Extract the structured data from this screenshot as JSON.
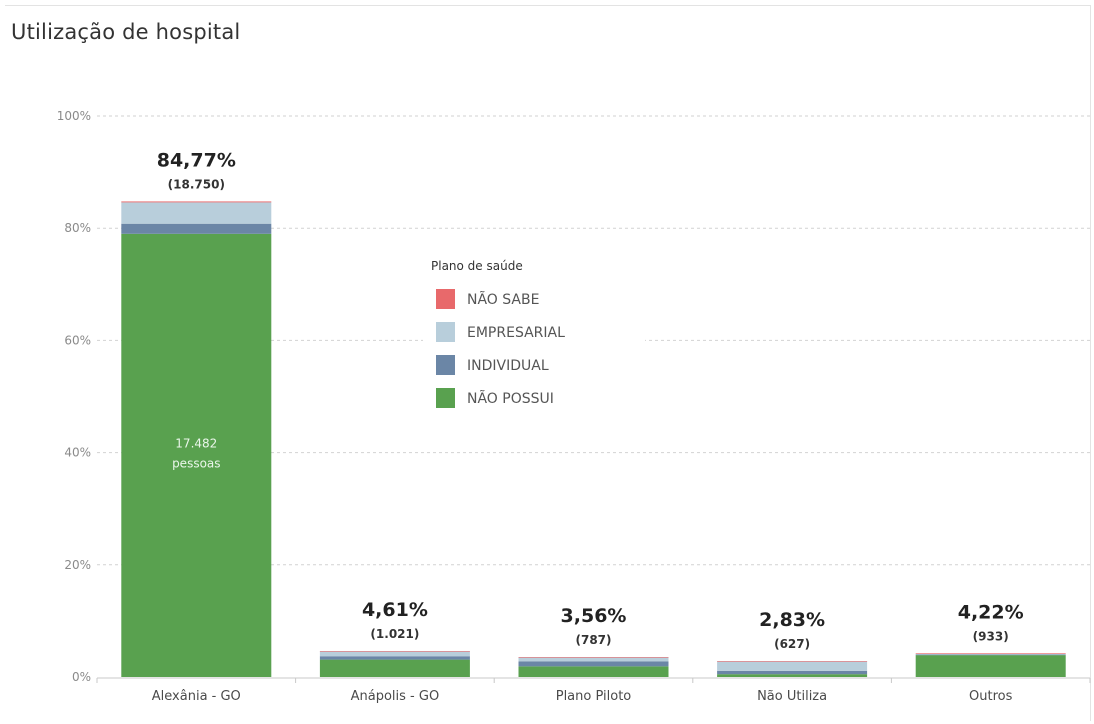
{
  "chart_data": {
    "type": "bar",
    "stacked": true,
    "title": "Utilização de hospital",
    "xlabel": "",
    "ylabel": "",
    "ylim": [
      0,
      100
    ],
    "y_ticks": [
      "0%",
      "20%",
      "40%",
      "60%",
      "80%",
      "100%"
    ],
    "grid": true,
    "legend": {
      "title": "Plano de saúde",
      "placement": "center"
    },
    "categories": [
      "Alexânia - GO",
      "Anápolis - GO",
      "Plano Piloto",
      "Não Utiliza",
      "Outros"
    ],
    "totals_pct": [
      "84,77%",
      "4,61%",
      "3,56%",
      "2,83%",
      "4,22%"
    ],
    "totals_count": [
      "(18.750)",
      "(1.021)",
      "(787)",
      "(627)",
      "(933)"
    ],
    "totals_value": [
      84.77,
      4.61,
      3.56,
      2.83,
      4.22
    ],
    "series": [
      {
        "name": "NÃO POSSUI",
        "color": "#59a14f",
        "values": [
          79.0,
          3.1,
          1.9,
          0.5,
          3.9
        ]
      },
      {
        "name": "INDIVIDUAL",
        "color": "#6b86a6",
        "values": [
          1.8,
          0.6,
          0.9,
          0.6,
          0.1
        ]
      },
      {
        "name": "EMPRESARIAL",
        "color": "#b8cedb",
        "values": [
          3.8,
          0.9,
          0.7,
          1.7,
          0.1
        ]
      },
      {
        "name": "NÃO SABE",
        "color": "#e8696b",
        "values": [
          0.17,
          0.01,
          0.06,
          0.03,
          0.12
        ]
      }
    ],
    "annotations": [
      {
        "category": "Alexânia - GO",
        "series": "NÃO POSSUI",
        "text": [
          "17.482",
          "pessoas"
        ]
      }
    ]
  }
}
